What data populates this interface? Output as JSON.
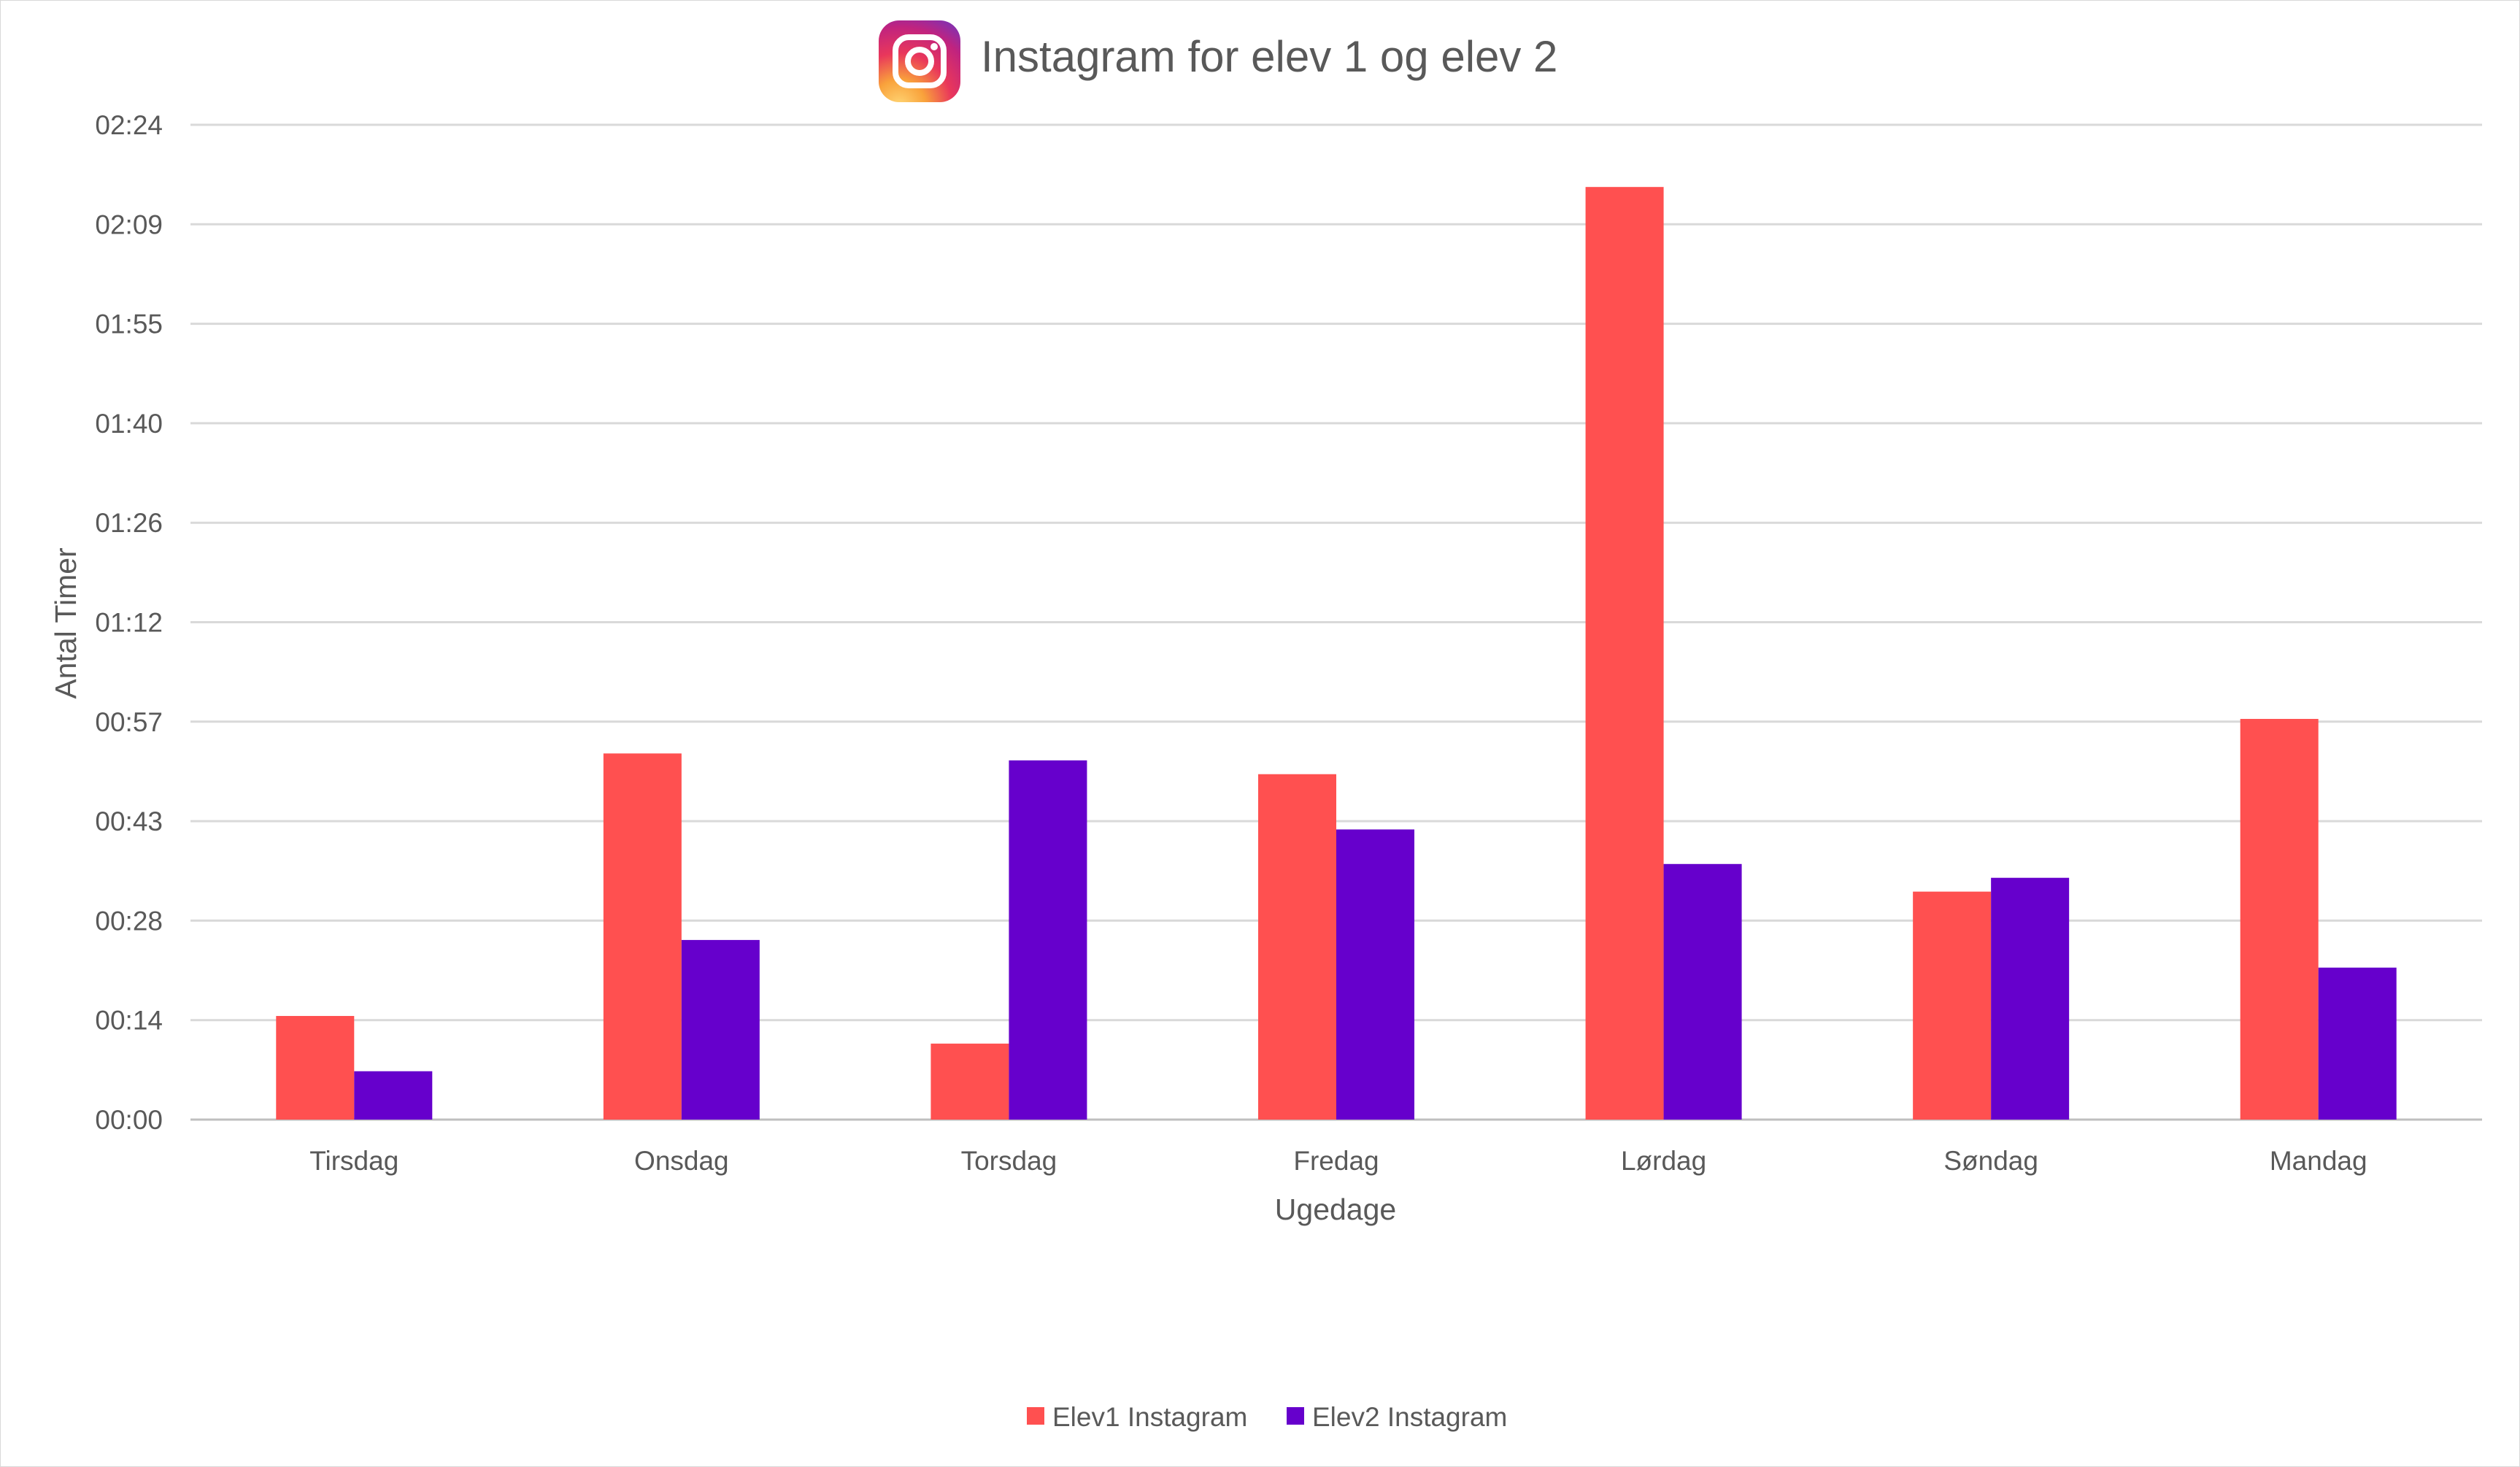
{
  "chart_data": {
    "type": "bar",
    "title": "Instagram for elev 1 og elev 2",
    "title_icon": "instagram-logo-icon",
    "xlabel": "Ugedage",
    "ylabel": "Antal Timer",
    "categories": [
      "Tirsdag",
      "Onsdag",
      "Torsdag",
      "Fredag",
      "Lørdag",
      "Søndag",
      "Mandag"
    ],
    "y_ticks": [
      "00:00",
      "00:14",
      "00:28",
      "00:43",
      "00:57",
      "01:12",
      "01:26",
      "01:40",
      "01:55",
      "02:09",
      "02:24"
    ],
    "ylim_minutes": [
      0,
      144
    ],
    "series": [
      {
        "name": "Elev1 Instagram",
        "color": "#ff5050",
        "values_minutes": [
          15,
          53,
          11,
          50,
          135,
          33,
          58
        ]
      },
      {
        "name": "Elev2 Instagram",
        "color": "#6600cc",
        "values_minutes": [
          7,
          26,
          52,
          42,
          37,
          35,
          22
        ]
      }
    ],
    "grid": true,
    "legend_position": "bottom"
  }
}
